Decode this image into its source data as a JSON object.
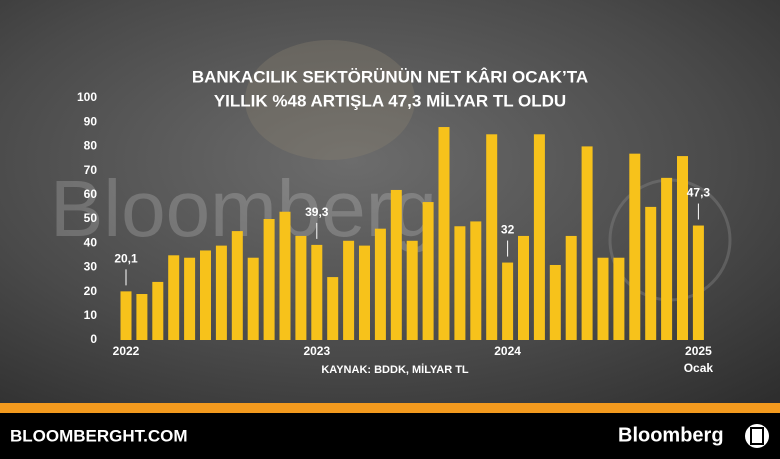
{
  "chart_data": {
    "type": "bar",
    "title": [
      "BANKACILIK SEKTÖRÜNÜN NET KÂRI OCAK’TA",
      "YILLIK %48 ARTIŞLA 47,3 MİLYAR TL OLDU"
    ],
    "categories": [
      "2022",
      null,
      null,
      null,
      null,
      null,
      null,
      null,
      null,
      null,
      null,
      null,
      "2023",
      null,
      null,
      null,
      null,
      null,
      null,
      null,
      null,
      null,
      null,
      null,
      "2024",
      null,
      null,
      null,
      null,
      null,
      null,
      null,
      null,
      null,
      null,
      null,
      "2025"
    ],
    "last_category_note": "Ocak",
    "values": [
      20.1,
      19,
      24,
      35,
      34,
      37,
      39,
      45,
      34,
      50,
      53,
      43,
      39.3,
      26,
      41,
      39,
      46,
      62,
      41,
      57,
      88,
      47,
      49,
      85,
      32,
      43,
      85,
      31,
      43,
      80,
      34,
      34,
      77,
      55,
      67,
      76,
      47.3
    ],
    "value_labels": [
      "20,1",
      null,
      null,
      null,
      null,
      null,
      null,
      null,
      null,
      null,
      null,
      null,
      "39,3",
      null,
      null,
      null,
      null,
      null,
      null,
      null,
      null,
      null,
      null,
      null,
      "32",
      null,
      null,
      null,
      null,
      null,
      null,
      null,
      null,
      null,
      null,
      null,
      "47,3"
    ],
    "color": "#f7c21b",
    "ylim": [
      0,
      100
    ],
    "yticks": [
      0,
      10,
      20,
      30,
      40,
      50,
      60,
      70,
      80,
      90,
      100
    ],
    "grid": false,
    "source": "KAYNAK: BDDK, MİLYAR TL"
  },
  "watermark": "Bloomberg",
  "footer": {
    "site": "BLOOMBERGHT.COM",
    "brand": "Bloomberg"
  }
}
